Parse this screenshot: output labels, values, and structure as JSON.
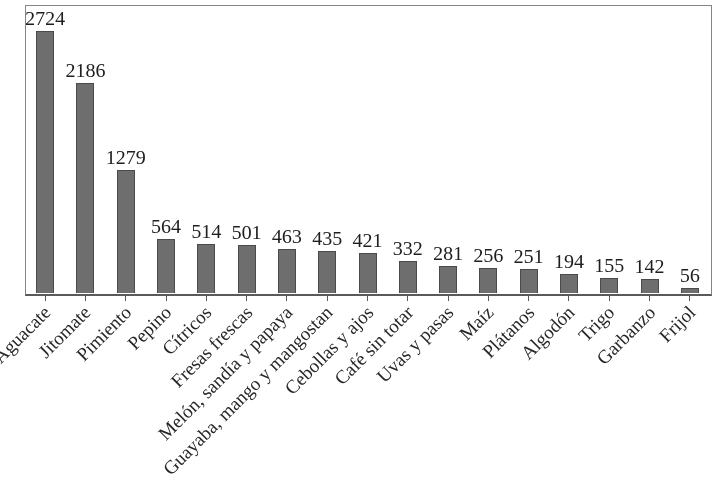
{
  "chart_data": {
    "type": "bar",
    "title": "",
    "xlabel": "",
    "ylabel": "",
    "categories": [
      "Aguacate",
      "Jitomate",
      "Pimiento",
      "Pepino",
      "Cítricos",
      "Fresas frescas",
      "Melón, sandía y papaya",
      "Guayaba, mango y mangostan",
      "Cebollas y ajos",
      "Café sin totar",
      "Uvas y pasas",
      "Maíz",
      "Plátanos",
      "Algodón",
      "Trigo",
      "Garbanzo",
      "Frijol"
    ],
    "values": [
      2724,
      2186,
      1279,
      564,
      514,
      501,
      463,
      435,
      421,
      332,
      281,
      256,
      251,
      194,
      155,
      142,
      56
    ],
    "value_labels_shown": true,
    "ylim": [
      0,
      3000
    ],
    "grid": false,
    "legend_position": "none",
    "x_label_rotation_deg": 45,
    "colors": {
      "bar_fill": "#6e6e6e",
      "bar_border": "#4a4a4a",
      "frame_border": "#858585",
      "axis_line": "#5a5a5a",
      "text": "#262626",
      "background": "#ffffff"
    }
  }
}
